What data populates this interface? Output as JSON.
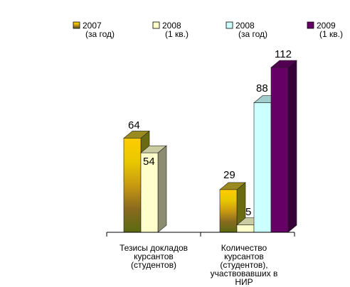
{
  "chart_data": {
    "type": "bar",
    "title": "",
    "xlabel": "",
    "ylabel": "",
    "ylim": [
      0,
      112
    ],
    "legend_position": "top",
    "categories": [
      [
        "Тезисы докладов",
        "курсантов",
        "(студентов)"
      ],
      [
        "Количество",
        "курсантов",
        "(студентов),",
        "участвовавших в",
        "НИР"
      ]
    ],
    "series": [
      {
        "name": "2007 (за год)",
        "label_lines": [
          "2007",
          "(за год)"
        ],
        "color": "#c8a000",
        "values": [
          64,
          29
        ]
      },
      {
        "name": "2008 (1 кв.)",
        "label_lines": [
          "2008",
          "(1 кв.)"
        ],
        "color": "#ffffcc",
        "values": [
          54,
          5
        ]
      },
      {
        "name": "2008 (за год)",
        "label_lines": [
          "2008",
          "(за год)"
        ],
        "color": "#ccffff",
        "values": [
          null,
          88
        ]
      },
      {
        "name": "2009 (1 кв.)",
        "label_lines": [
          "2009",
          "(1 кв.)"
        ],
        "color": "#660066",
        "values": [
          null,
          112
        ]
      }
    ],
    "data_labels": [
      [
        "64",
        "54",
        "",
        ""
      ],
      [
        "29",
        "5",
        "88",
        "112"
      ]
    ]
  }
}
